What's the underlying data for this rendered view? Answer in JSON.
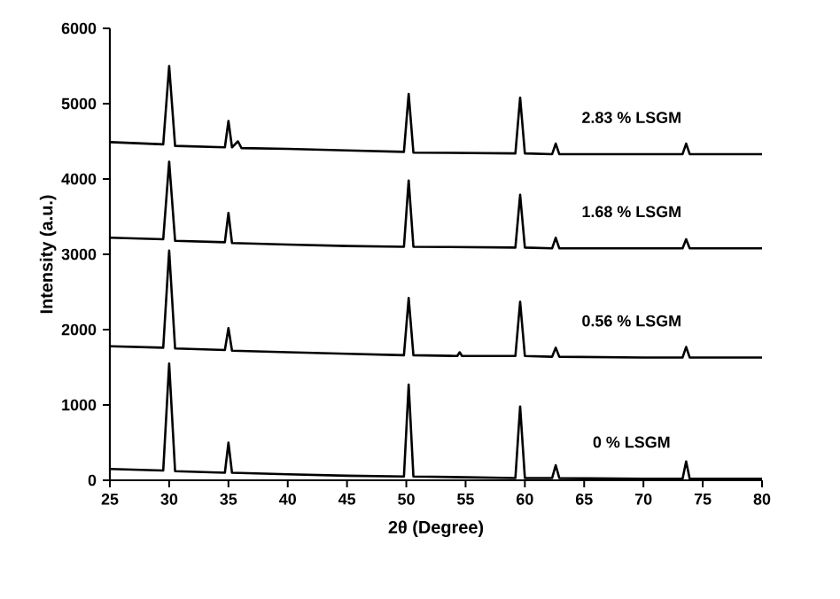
{
  "chart_data": {
    "type": "line",
    "xlabel": "2θ (Degree)",
    "ylabel": "Intensity (a.u.)",
    "xlim": [
      25,
      80
    ],
    "xticks": [
      25,
      30,
      35,
      40,
      45,
      50,
      55,
      60,
      65,
      70,
      75,
      80
    ],
    "ylim": [
      0,
      6000
    ],
    "yticks": [
      0,
      1000,
      2000,
      3000,
      4000,
      5000,
      6000
    ],
    "grid": false,
    "legend": false,
    "marker": "none",
    "line_style": "solid",
    "series": [
      {
        "name": "0 % LSGM",
        "color": "#000000",
        "x": [
          25,
          29.5,
          30,
          30.5,
          34.7,
          35,
          35.3,
          40,
          45,
          49.8,
          50.2,
          50.6,
          55,
          59.2,
          59.6,
          60,
          62.3,
          62.6,
          62.9,
          70,
          73.3,
          73.6,
          73.9,
          80
        ],
        "values": [
          150,
          130,
          1550,
          120,
          100,
          500,
          100,
          80,
          60,
          50,
          1270,
          50,
          40,
          30,
          980,
          30,
          30,
          200,
          30,
          20,
          20,
          250,
          20,
          20
        ]
      },
      {
        "name": "0.56 % LSGM",
        "color": "#000000",
        "x": [
          25,
          29.5,
          30,
          30.5,
          34.7,
          35,
          35.3,
          40,
          45,
          49.8,
          50.2,
          50.6,
          54.3,
          54.5,
          54.7,
          59.2,
          59.6,
          60,
          62.3,
          62.6,
          62.9,
          70,
          73.3,
          73.6,
          73.9,
          80
        ],
        "values": [
          1780,
          1760,
          3050,
          1750,
          1730,
          2020,
          1720,
          1700,
          1680,
          1660,
          2420,
          1660,
          1650,
          1700,
          1650,
          1650,
          2370,
          1650,
          1640,
          1760,
          1640,
          1630,
          1630,
          1770,
          1630,
          1630
        ]
      },
      {
        "name": "1.68 % LSGM",
        "color": "#000000",
        "x": [
          25,
          29.5,
          30,
          30.5,
          34.7,
          35,
          35.3,
          40,
          45,
          49.8,
          50.2,
          50.6,
          59.2,
          59.6,
          60,
          62.3,
          62.6,
          62.9,
          70,
          73.3,
          73.6,
          73.9,
          80
        ],
        "values": [
          3220,
          3200,
          4230,
          3180,
          3160,
          3550,
          3150,
          3130,
          3110,
          3100,
          3980,
          3100,
          3090,
          3790,
          3090,
          3080,
          3220,
          3080,
          3080,
          3080,
          3200,
          3080,
          3080
        ]
      },
      {
        "name": "2.83 % LSGM",
        "color": "#000000",
        "x": [
          25,
          29.5,
          30,
          30.5,
          34.7,
          35,
          35.3,
          35.8,
          36.1,
          40,
          45,
          49.8,
          50.2,
          50.6,
          59.2,
          59.6,
          60,
          62.3,
          62.6,
          62.9,
          70,
          73.3,
          73.6,
          73.9,
          80
        ],
        "values": [
          4490,
          4460,
          5500,
          4440,
          4420,
          4770,
          4420,
          4500,
          4410,
          4400,
          4380,
          4360,
          5130,
          4350,
          4340,
          5080,
          4340,
          4330,
          4470,
          4330,
          4330,
          4330,
          4470,
          4330,
          4330
        ]
      }
    ]
  }
}
